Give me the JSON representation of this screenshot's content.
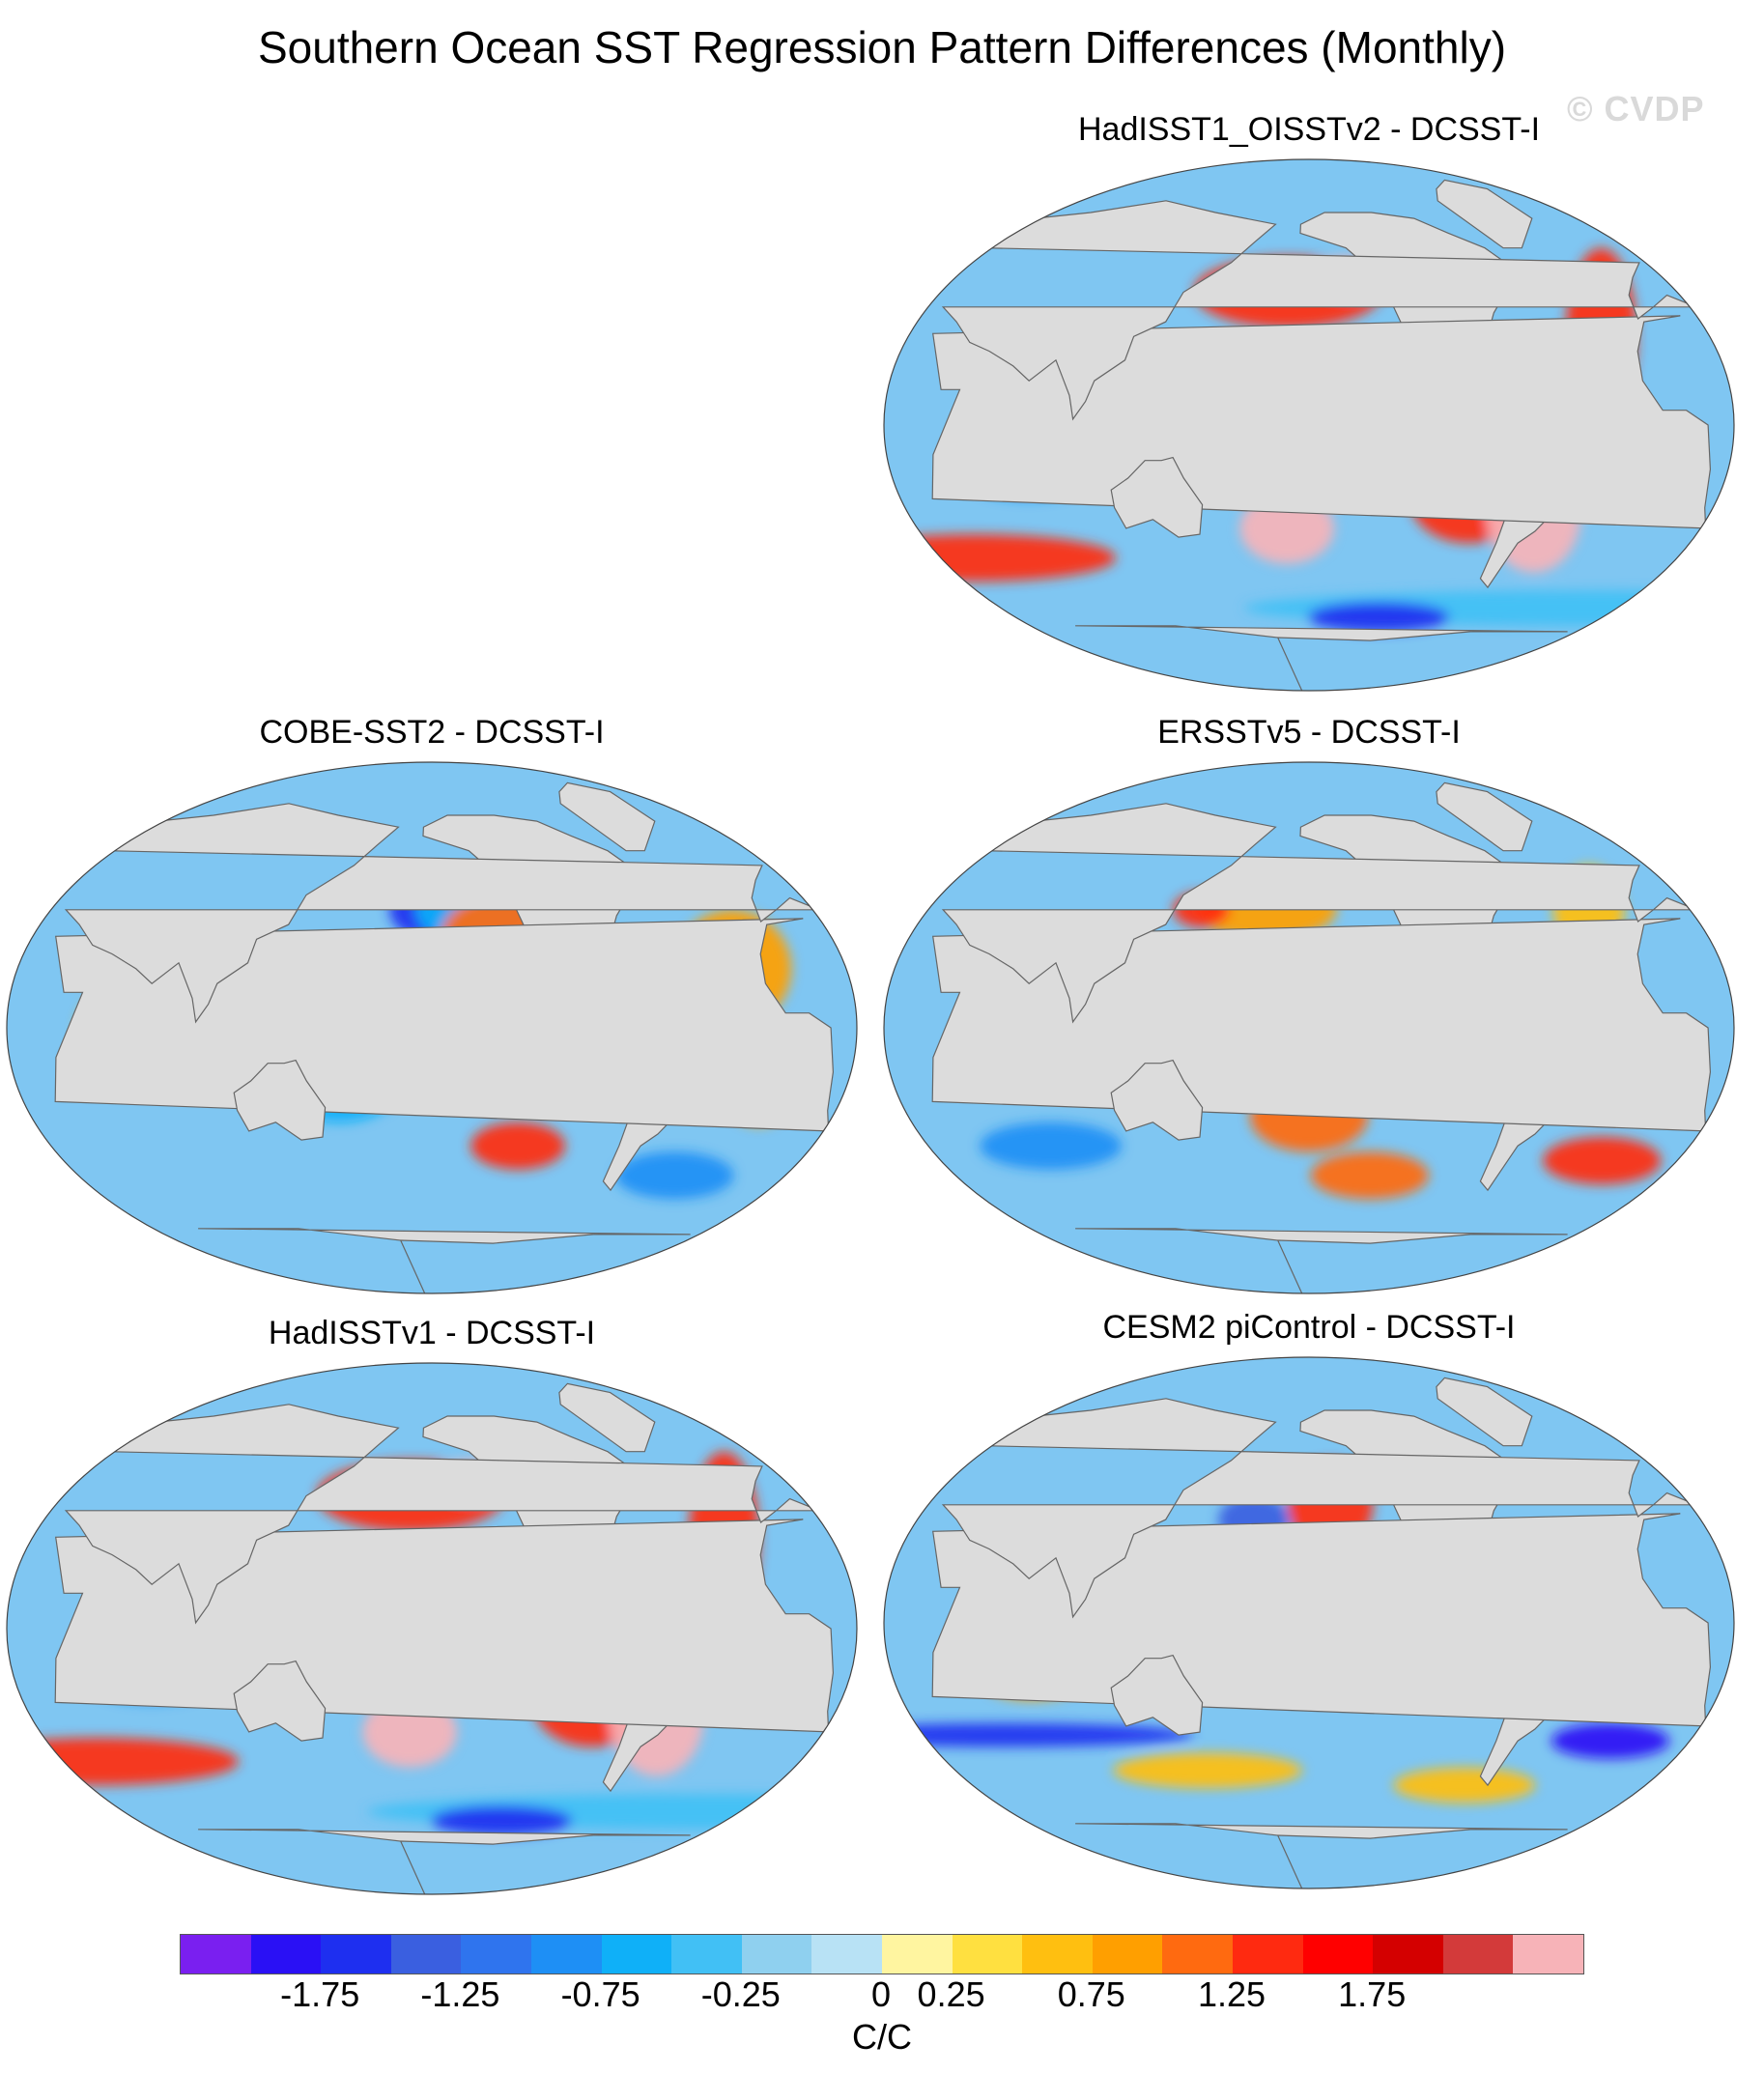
{
  "title": "Southern Ocean SST Regression Pattern Differences (Monthly)",
  "watermark": "© CVDP",
  "panels": [
    {
      "id": "hadisst1-oisstv2",
      "title": "HadISST1_OISSTv2 - DCSST-I",
      "blobs": [
        {
          "lon": -150,
          "lat": 5,
          "rx": 34,
          "ry": 18,
          "level": 0
        },
        {
          "lon": -170,
          "lat": 45,
          "rx": 40,
          "ry": 12,
          "level": 15
        },
        {
          "lon": -140,
          "lat": 50,
          "rx": 18,
          "ry": 7,
          "level": 19
        },
        {
          "lon": 160,
          "lat": 15,
          "rx": 20,
          "ry": 12,
          "level": 13
        },
        {
          "lon": 80,
          "lat": -15,
          "rx": 30,
          "ry": 10,
          "level": 5
        },
        {
          "lon": -170,
          "lat": -35,
          "rx": 20,
          "ry": 12,
          "level": 19
        },
        {
          "lon": -90,
          "lat": -25,
          "rx": 25,
          "ry": 15,
          "level": 15
        },
        {
          "lon": -60,
          "lat": -30,
          "rx": 20,
          "ry": 20,
          "level": 19
        },
        {
          "lon": 40,
          "lat": -45,
          "rx": 60,
          "ry": 8,
          "level": 15
        },
        {
          "lon": 0,
          "lat": -62,
          "rx": 150,
          "ry": 6,
          "level": 7
        },
        {
          "lon": -120,
          "lat": -65,
          "rx": 30,
          "ry": 5,
          "level": 2
        },
        {
          "lon": -30,
          "lat": 30,
          "rx": 15,
          "ry": 30,
          "level": 15
        },
        {
          "lon": 70,
          "lat": 12,
          "rx": 15,
          "ry": 10,
          "level": 13
        }
      ]
    },
    {
      "id": "cobe-sst2",
      "title": "COBE-SST2 - DCSST-I",
      "blobs": [
        {
          "lon": -130,
          "lat": 0,
          "rx": 60,
          "ry": 4,
          "level": 19
        },
        {
          "lon": -120,
          "lat": 0,
          "rx": 70,
          "ry": 9,
          "level": 14
        },
        {
          "lon": -160,
          "lat": 40,
          "rx": 18,
          "ry": 10,
          "level": 2
        },
        {
          "lon": -140,
          "lat": 40,
          "rx": 25,
          "ry": 12,
          "level": 6
        },
        {
          "lon": -130,
          "lat": 30,
          "rx": 25,
          "ry": 15,
          "level": 14
        },
        {
          "lon": -30,
          "lat": 20,
          "rx": 25,
          "ry": 20,
          "level": 13
        },
        {
          "lon": -20,
          "lat": -15,
          "rx": 18,
          "ry": 18,
          "level": 13
        },
        {
          "lon": 75,
          "lat": 0,
          "rx": 25,
          "ry": 15,
          "level": 12
        },
        {
          "lon": -120,
          "lat": -40,
          "rx": 20,
          "ry": 8,
          "level": 15
        },
        {
          "lon": 160,
          "lat": -20,
          "rx": 25,
          "ry": 12,
          "level": 6
        },
        {
          "lon": -40,
          "lat": -50,
          "rx": 25,
          "ry": 8,
          "level": 5
        }
      ]
    },
    {
      "id": "ersstv5",
      "title": "ERSSTv5 - DCSST-I",
      "blobs": [
        {
          "lon": -150,
          "lat": 0,
          "rx": 50,
          "ry": 15,
          "level": 6
        },
        {
          "lon": 180,
          "lat": 40,
          "rx": 30,
          "ry": 10,
          "level": 13
        },
        {
          "lon": 150,
          "lat": 40,
          "rx": 12,
          "ry": 6,
          "level": 15
        },
        {
          "lon": -160,
          "lat": -30,
          "rx": 25,
          "ry": 12,
          "level": 14
        },
        {
          "lon": -130,
          "lat": -50,
          "rx": 25,
          "ry": 8,
          "level": 14
        },
        {
          "lon": 85,
          "lat": -10,
          "rx": 25,
          "ry": 10,
          "level": 12
        },
        {
          "lon": -20,
          "lat": -45,
          "rx": 25,
          "ry": 8,
          "level": 15
        },
        {
          "lon": -30,
          "lat": 40,
          "rx": 15,
          "ry": 15,
          "level": 12
        },
        {
          "lon": 80,
          "lat": -40,
          "rx": 30,
          "ry": 8,
          "level": 5
        }
      ]
    },
    {
      "id": "hadisstv1",
      "title": "HadISSTv1 - DCSST-I",
      "blobs": [
        {
          "lon": -150,
          "lat": 5,
          "rx": 34,
          "ry": 18,
          "level": 0
        },
        {
          "lon": -170,
          "lat": 45,
          "rx": 40,
          "ry": 12,
          "level": 15
        },
        {
          "lon": -140,
          "lat": 50,
          "rx": 18,
          "ry": 7,
          "level": 19
        },
        {
          "lon": 160,
          "lat": 15,
          "rx": 20,
          "ry": 12,
          "level": 13
        },
        {
          "lon": 80,
          "lat": -15,
          "rx": 30,
          "ry": 10,
          "level": 5
        },
        {
          "lon": -170,
          "lat": -35,
          "rx": 20,
          "ry": 12,
          "level": 19
        },
        {
          "lon": -90,
          "lat": -25,
          "rx": 25,
          "ry": 15,
          "level": 15
        },
        {
          "lon": -60,
          "lat": -30,
          "rx": 20,
          "ry": 20,
          "level": 19
        },
        {
          "lon": 40,
          "lat": -45,
          "rx": 60,
          "ry": 8,
          "level": 15
        },
        {
          "lon": 0,
          "lat": -62,
          "rx": 150,
          "ry": 6,
          "level": 7
        },
        {
          "lon": -120,
          "lat": -65,
          "rx": 30,
          "ry": 5,
          "level": 2
        },
        {
          "lon": -30,
          "lat": 30,
          "rx": 15,
          "ry": 30,
          "level": 15
        }
      ]
    },
    {
      "id": "cesm2-picontrol",
      "title": "CESM2 piControl - DCSST-I",
      "blobs": [
        {
          "lon": -150,
          "lat": 40,
          "rx": 18,
          "ry": 15,
          "level": 15
        },
        {
          "lon": 175,
          "lat": 35,
          "rx": 15,
          "ry": 8,
          "level": 3
        },
        {
          "lon": -150,
          "lat": 5,
          "rx": 50,
          "ry": 5,
          "level": 13
        },
        {
          "lon": -130,
          "lat": -15,
          "rx": 50,
          "ry": 6,
          "level": 12
        },
        {
          "lon": 60,
          "lat": -38,
          "rx": 80,
          "ry": 4,
          "level": 2
        },
        {
          "lon": -80,
          "lat": -55,
          "rx": 30,
          "ry": 6,
          "level": 12
        },
        {
          "lon": -20,
          "lat": -40,
          "rx": 25,
          "ry": 6,
          "level": 1
        },
        {
          "lon": 150,
          "lat": -50,
          "rx": 40,
          "ry": 6,
          "level": 12
        },
        {
          "lon": 80,
          "lat": -20,
          "rx": 20,
          "ry": 6,
          "level": 13
        }
      ]
    }
  ],
  "colorbar": {
    "colors": [
      "#7a1ff0",
      "#2a10f5",
      "#1e2ff0",
      "#3a5fe0",
      "#2f74ee",
      "#1e8ff5",
      "#0fb0f8",
      "#41c0f5",
      "#8fd0ef",
      "#b8e2f5",
      "#fff5a0",
      "#ffe040",
      "#ffbf10",
      "#ff9f00",
      "#ff6a10",
      "#ff2a10",
      "#ff0000",
      "#d40000",
      "#d33a3a",
      "#f7b3b8"
    ],
    "labels": [
      "-1.75",
      "-1.25",
      "-0.75",
      "-0.25",
      "0",
      "0.25",
      "0.75",
      "1.25",
      "1.75"
    ],
    "label_boundary_index": [
      2,
      4,
      6,
      8,
      10,
      11,
      13,
      15,
      17
    ],
    "units": "C/C"
  }
}
